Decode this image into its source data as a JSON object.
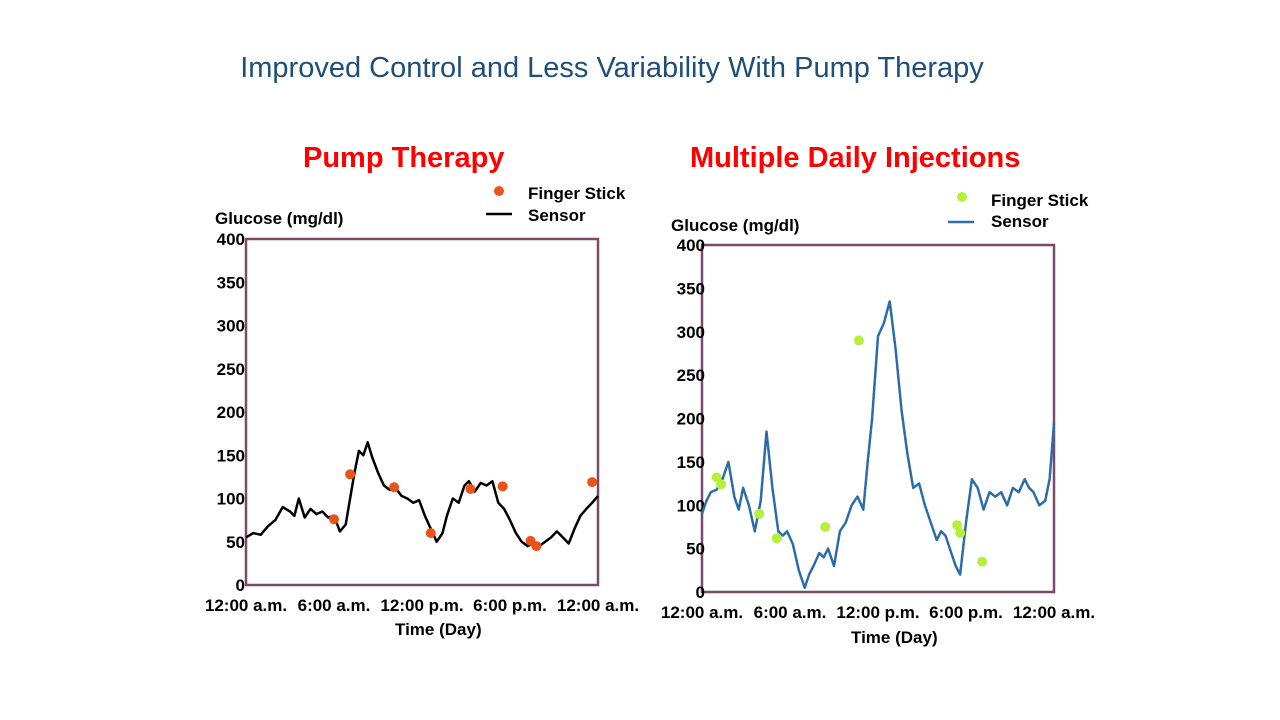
{
  "title": "Improved Control and Less Variability With Pump Therapy",
  "chart_data": [
    {
      "type": "line",
      "title": "Pump Therapy",
      "ylabel": "Glucose (mg/dl)",
      "xlabel": "Time (Day)",
      "ylim": [
        0,
        400
      ],
      "yticks": [
        0,
        50,
        100,
        150,
        200,
        250,
        300,
        350,
        400
      ],
      "xlim": [
        0,
        24
      ],
      "xticks": [
        {
          "x": 0,
          "label": "12:00 a.m."
        },
        {
          "x": 6,
          "label": "6:00 a.m."
        },
        {
          "x": 12,
          "label": "12:00 p.m."
        },
        {
          "x": 18,
          "label": "6:00 p.m."
        },
        {
          "x": 24,
          "label": "12:00 a.m."
        }
      ],
      "line_color": "#000000",
      "marker_color": "#e8541a",
      "legend": [
        {
          "label": "Finger Stick",
          "kind": "marker"
        },
        {
          "label": "Sensor",
          "kind": "line"
        }
      ],
      "series": [
        {
          "name": "Sensor",
          "x": [
            0,
            0.5,
            1.0,
            1.5,
            2.0,
            2.5,
            3.0,
            3.3,
            3.6,
            4.0,
            4.4,
            4.8,
            5.2,
            5.6,
            6.0,
            6.4,
            6.8,
            7.1,
            7.4,
            7.7,
            8.0,
            8.3,
            8.6,
            9.0,
            9.4,
            9.8,
            10.2,
            10.6,
            11.0,
            11.4,
            11.8,
            12.2,
            12.6,
            13.0,
            13.4,
            13.7,
            14.1,
            14.5,
            14.9,
            15.2,
            15.6,
            16.0,
            16.4,
            16.8,
            17.2,
            17.6,
            18.0,
            18.4,
            18.8,
            19.2,
            19.6,
            20.0,
            20.4,
            20.8,
            21.2,
            21.6,
            22.0,
            22.4,
            22.8,
            23.2,
            23.6,
            24.0
          ],
          "y": [
            55,
            60,
            58,
            68,
            75,
            90,
            85,
            80,
            100,
            78,
            88,
            82,
            85,
            78,
            80,
            62,
            70,
            100,
            130,
            155,
            150,
            165,
            148,
            130,
            115,
            110,
            112,
            103,
            100,
            95,
            98,
            80,
            65,
            50,
            60,
            80,
            100,
            95,
            115,
            120,
            108,
            118,
            115,
            120,
            95,
            88,
            75,
            60,
            50,
            45,
            48,
            45,
            50,
            55,
            62,
            55,
            48,
            65,
            80,
            88,
            95,
            103
          ]
        },
        {
          "name": "Finger Stick",
          "x": [
            6.0,
            7.1,
            10.1,
            12.6,
            15.3,
            17.5,
            19.4,
            19.8,
            23.6
          ],
          "y": [
            76,
            128,
            113,
            60,
            111,
            114,
            51,
            45,
            119
          ]
        }
      ]
    },
    {
      "type": "line",
      "title": "Multiple Daily Injections",
      "ylabel": "Glucose (mg/dl)",
      "xlabel": "Time (Day)",
      "ylim": [
        0,
        400
      ],
      "yticks": [
        0,
        50,
        100,
        150,
        200,
        250,
        300,
        350,
        400
      ],
      "xlim": [
        0,
        24
      ],
      "xticks": [
        {
          "x": 0,
          "label": "12:00 a.m."
        },
        {
          "x": 6,
          "label": "6:00 a.m."
        },
        {
          "x": 12,
          "label": "12:00 p.m."
        },
        {
          "x": 18,
          "label": "6:00 p.m."
        },
        {
          "x": 24,
          "label": "12:00 a.m."
        }
      ],
      "line_color": "#2e6faa",
      "marker_color": "#b7f03c",
      "legend": [
        {
          "label": "Finger Stick",
          "kind": "marker"
        },
        {
          "label": "Sensor",
          "kind": "line"
        }
      ],
      "series": [
        {
          "name": "Sensor",
          "x": [
            0,
            0.3,
            0.6,
            1.0,
            1.4,
            1.8,
            2.2,
            2.5,
            2.8,
            3.2,
            3.6,
            4.0,
            4.4,
            4.8,
            5.2,
            5.5,
            5.8,
            6.2,
            6.6,
            7.0,
            7.3,
            7.6,
            8.0,
            8.3,
            8.6,
            9.0,
            9.4,
            9.8,
            10.2,
            10.6,
            11.0,
            11.3,
            11.6,
            12.0,
            12.4,
            12.8,
            13.2,
            13.6,
            14.0,
            14.4,
            14.8,
            15.2,
            15.6,
            16.0,
            16.3,
            16.6,
            17.0,
            17.3,
            17.6,
            18.0,
            18.4,
            18.8,
            19.2,
            19.6,
            20.0,
            20.4,
            20.8,
            21.2,
            21.6,
            22.0,
            22.3,
            22.6,
            23.0,
            23.4,
            23.7,
            24.0
          ],
          "y": [
            90,
            105,
            115,
            118,
            130,
            150,
            110,
            95,
            120,
            100,
            70,
            105,
            185,
            120,
            70,
            65,
            70,
            55,
            25,
            5,
            20,
            30,
            45,
            40,
            50,
            30,
            70,
            80,
            100,
            110,
            95,
            150,
            200,
            295,
            310,
            335,
            280,
            210,
            160,
            120,
            125,
            100,
            80,
            60,
            70,
            65,
            45,
            30,
            20,
            80,
            130,
            120,
            95,
            115,
            110,
            115,
            100,
            120,
            115,
            130,
            120,
            115,
            100,
            105,
            130,
            195
          ]
        },
        {
          "name": "Finger Stick",
          "x": [
            1.0,
            1.3,
            3.9,
            5.1,
            8.4,
            10.7,
            17.4,
            17.6,
            19.1
          ],
          "y": [
            132,
            124,
            90,
            62,
            75,
            290,
            77,
            68,
            35
          ]
        }
      ]
    }
  ]
}
